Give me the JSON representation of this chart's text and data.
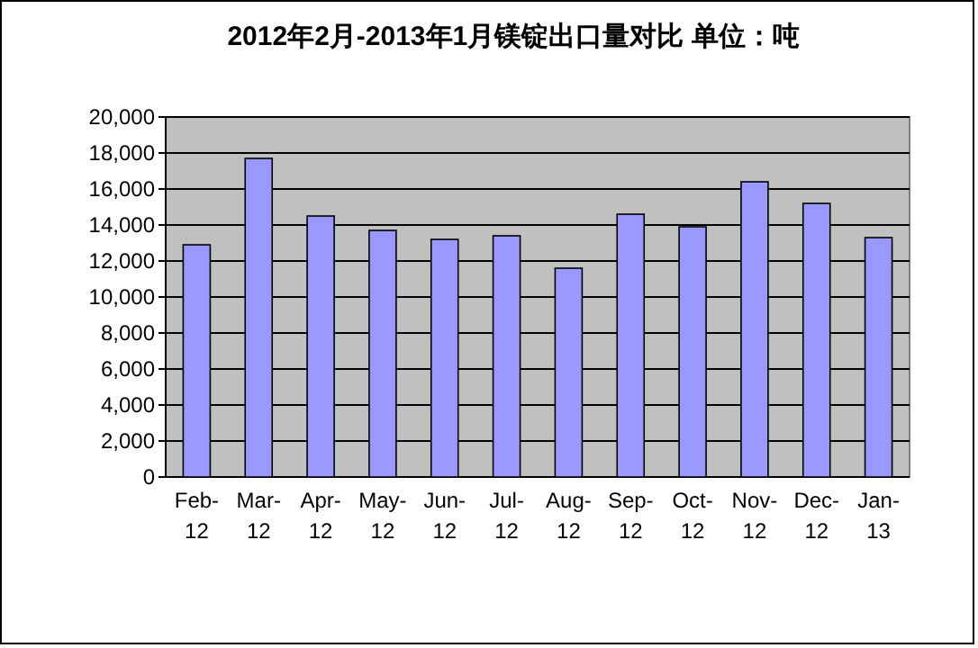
{
  "chart_data": {
    "type": "bar",
    "title": "2012年2月-2013年1月镁锭出口量对比 单位：吨",
    "categories": [
      "Feb-12",
      "Mar-12",
      "Apr-12",
      "May-12",
      "Jun-12",
      "Jul-12",
      "Aug-12",
      "Sep-12",
      "Oct-12",
      "Nov-12",
      "Dec-12",
      "Jan-13"
    ],
    "values": [
      12900,
      17700,
      14500,
      13700,
      13200,
      13400,
      11600,
      14600,
      13900,
      16400,
      15200,
      13300
    ],
    "color": "#9999ff",
    "ylim": [
      0,
      20000
    ],
    "yticks": [
      0,
      {
        "value": 2000,
        "label": "2,000"
      },
      {
        "value": 4000,
        "label": "4,000"
      },
      {
        "value": 6000,
        "label": "6,000"
      },
      {
        "value": 8000,
        "label": "8,000"
      },
      {
        "value": 10000,
        "label": "10,000"
      },
      {
        "value": 12000,
        "label": "12,000"
      },
      {
        "value": 14000,
        "label": "14,000"
      },
      {
        "value": 16000,
        "label": "16,000"
      },
      {
        "value": 18000,
        "label": "18,000"
      },
      {
        "value": 20000,
        "label": "20,000"
      }
    ],
    "grid": "y"
  }
}
